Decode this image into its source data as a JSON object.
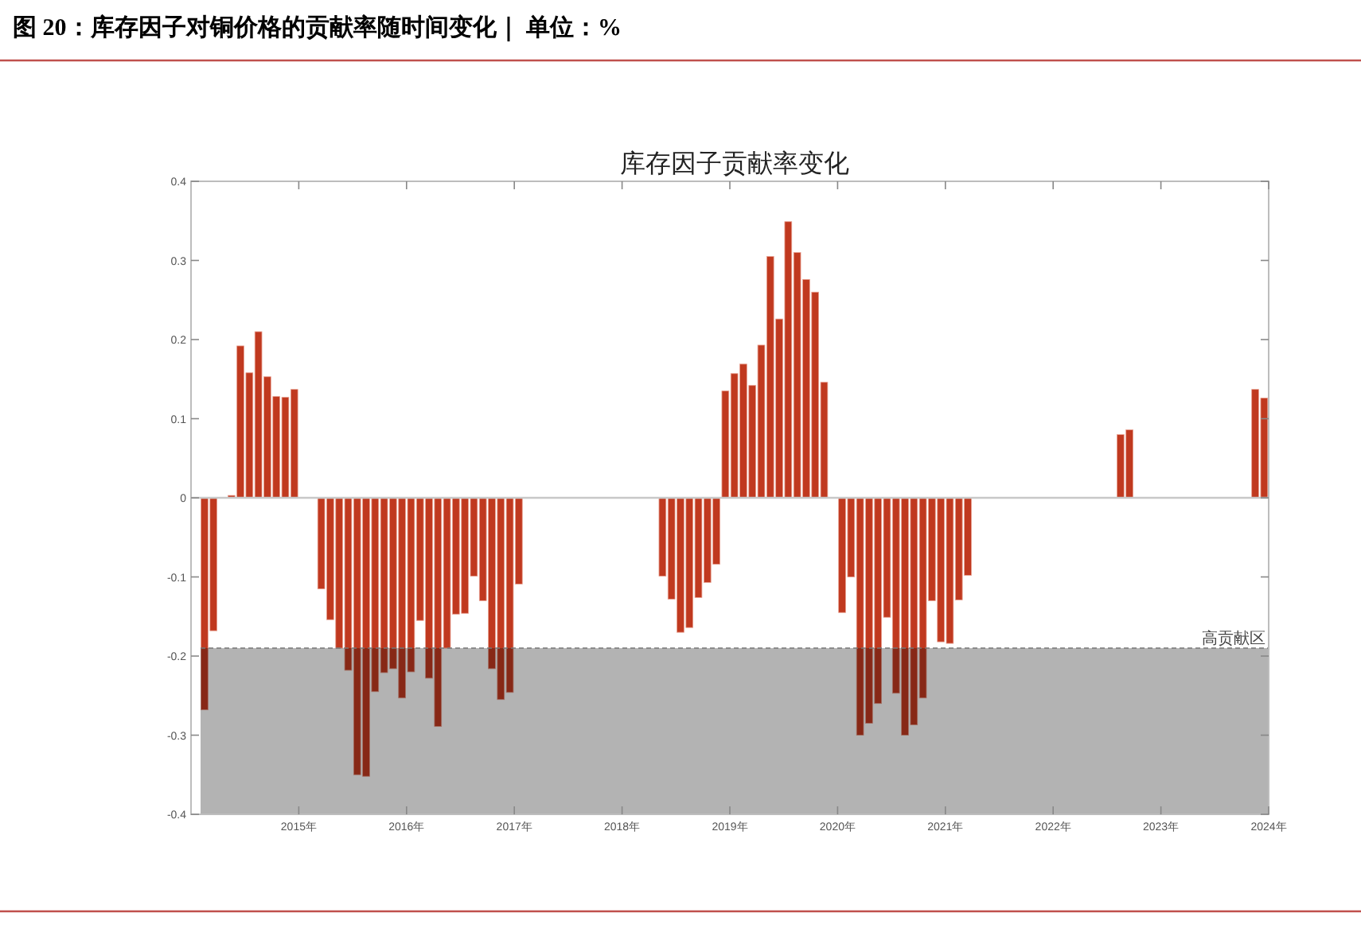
{
  "chart_data": {
    "type": "bar",
    "title": "图 20：库存因子对铜价格的贡献率随时间变化｜ 单位：%",
    "subtitle": "库存因子贡献率变化",
    "x": [
      "2014-02",
      "2014-03",
      "2014-05",
      "2014-06",
      "2014-07",
      "2014-08",
      "2014-09",
      "2014-10",
      "2014-11",
      "2014-12",
      "2015-03",
      "2015-04",
      "2015-05",
      "2015-06",
      "2015-07",
      "2015-08",
      "2015-09",
      "2015-10",
      "2015-11",
      "2015-12",
      "2016-01",
      "2016-02",
      "2016-03",
      "2016-04",
      "2016-05",
      "2016-06",
      "2016-07",
      "2016-08",
      "2016-09",
      "2016-10",
      "2016-11",
      "2016-12",
      "2017-01",
      "2018-05",
      "2018-06",
      "2018-07",
      "2018-08",
      "2018-09",
      "2018-10",
      "2018-11",
      "2018-12",
      "2019-01",
      "2019-02",
      "2019-03",
      "2019-04",
      "2019-05",
      "2019-06",
      "2019-07",
      "2019-08",
      "2019-09",
      "2019-10",
      "2019-11",
      "2020-01",
      "2020-02",
      "2020-03",
      "2020-04",
      "2020-05",
      "2020-06",
      "2020-07",
      "2020-08",
      "2020-09",
      "2020-10",
      "2020-11",
      "2020-12",
      "2021-01",
      "2021-02",
      "2021-03",
      "2022-08",
      "2022-09",
      "2023-11",
      "2023-12"
    ],
    "values": [
      -0.268,
      -0.168,
      0.003,
      0.192,
      0.158,
      0.21,
      0.153,
      0.128,
      0.127,
      0.137,
      -0.115,
      -0.154,
      -0.19,
      -0.218,
      -0.35,
      -0.352,
      -0.245,
      -0.221,
      -0.216,
      -0.253,
      -0.22,
      -0.155,
      -0.228,
      -0.289,
      -0.19,
      -0.147,
      -0.146,
      -0.099,
      -0.13,
      -0.216,
      -0.255,
      -0.246,
      -0.109,
      -0.099,
      -0.128,
      -0.17,
      -0.164,
      -0.126,
      -0.107,
      -0.084,
      0.135,
      0.157,
      0.169,
      0.142,
      0.193,
      0.305,
      0.226,
      0.349,
      0.31,
      0.276,
      0.26,
      0.146,
      -0.145,
      -0.1,
      -0.3,
      -0.285,
      -0.26,
      -0.151,
      -0.247,
      -0.3,
      -0.287,
      -0.253,
      -0.13,
      -0.182,
      -0.184,
      -0.129,
      -0.098,
      0.08,
      0.086,
      0.137,
      0.126
    ],
    "color": "#c0391f",
    "xlim": [
      "2014-01",
      "2024-01"
    ],
    "xticks": [
      {
        "value": "2015",
        "label": "2015年"
      },
      {
        "value": "2016",
        "label": "2016年"
      },
      {
        "value": "2017",
        "label": "2017年"
      },
      {
        "value": "2018",
        "label": "2018年"
      },
      {
        "value": "2019",
        "label": "2019年"
      },
      {
        "value": "2020",
        "label": "2020年"
      },
      {
        "value": "2021",
        "label": "2021年"
      },
      {
        "value": "2022",
        "label": "2022年"
      },
      {
        "value": "2023",
        "label": "2023年"
      },
      {
        "value": "2024",
        "label": "2024年"
      }
    ],
    "ylim": [
      -0.4,
      0.4
    ],
    "yticks": [
      -0.4,
      -0.3,
      -0.2,
      -0.1,
      0,
      0.1,
      0.2,
      0.3,
      0.4
    ],
    "bands": [
      {
        "axis": "y",
        "from": -0.4,
        "to": -0.19,
        "label": "高贡献区",
        "color": "#b3b3b3"
      }
    ],
    "ref_lines": [
      {
        "axis": "y",
        "value": -0.19,
        "color": "#777777",
        "line_style": "dashed"
      }
    ]
  }
}
